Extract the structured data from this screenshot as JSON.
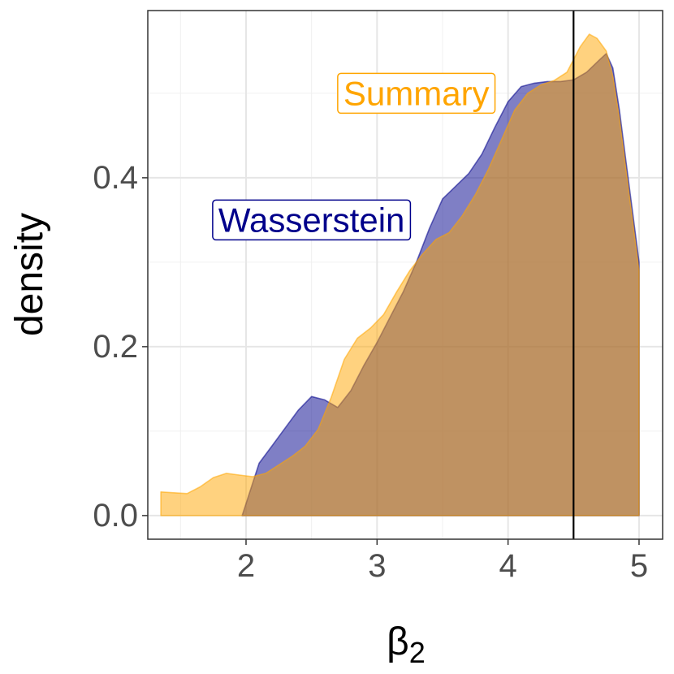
{
  "chart_data": {
    "type": "area",
    "xlabel": "β",
    "xlabel_sub": "2",
    "ylabel": "density",
    "xlim": [
      1.25,
      5.18
    ],
    "ylim": [
      -0.028,
      0.598
    ],
    "x_ticks": [
      2,
      3,
      4,
      5
    ],
    "x_tick_labels": [
      "2",
      "3",
      "4",
      "5"
    ],
    "y_ticks": [
      0.0,
      0.2,
      0.4
    ],
    "y_tick_labels": [
      "0.0",
      "0.2",
      "0.4"
    ],
    "x_minor_gridlines": [
      1.5,
      2.5,
      3.5,
      4.5
    ],
    "y_minor_gridlines": [
      0.1,
      0.3,
      0.5
    ],
    "grid": true,
    "legend": "none",
    "vline": 4.5,
    "series": [
      {
        "name": "Wasserstein",
        "fill": "#00008B",
        "stroke": "#00008B",
        "opacity": 0.5,
        "x": [
          1.97,
          2.1,
          2.2,
          2.3,
          2.4,
          2.5,
          2.6,
          2.7,
          2.8,
          2.9,
          3.0,
          3.1,
          3.2,
          3.3,
          3.4,
          3.5,
          3.6,
          3.7,
          3.8,
          3.9,
          4.0,
          4.1,
          4.2,
          4.3,
          4.4,
          4.5,
          4.6,
          4.7,
          4.75,
          4.8,
          4.85,
          4.9,
          4.95,
          5.0
        ],
        "y": [
          0.0,
          0.062,
          0.083,
          0.104,
          0.125,
          0.141,
          0.137,
          0.128,
          0.148,
          0.178,
          0.205,
          0.235,
          0.265,
          0.3,
          0.34,
          0.375,
          0.39,
          0.405,
          0.428,
          0.46,
          0.49,
          0.508,
          0.512,
          0.514,
          0.514,
          0.516,
          0.525,
          0.54,
          0.547,
          0.53,
          0.48,
          0.42,
          0.36,
          0.3
        ]
      },
      {
        "name": "Summary",
        "fill": "#FFA500",
        "stroke": "#FFA500",
        "opacity": 0.5,
        "x": [
          1.35,
          1.45,
          1.55,
          1.65,
          1.75,
          1.85,
          1.95,
          2.05,
          2.15,
          2.25,
          2.35,
          2.45,
          2.55,
          2.65,
          2.75,
          2.85,
          2.95,
          3.05,
          3.15,
          3.25,
          3.35,
          3.45,
          3.55,
          3.65,
          3.75,
          3.85,
          3.95,
          4.05,
          4.15,
          4.25,
          4.35,
          4.45,
          4.55,
          4.62,
          4.68,
          4.75,
          4.8,
          4.85,
          4.9,
          4.95,
          5.0
        ],
        "y": [
          0.028,
          0.027,
          0.026,
          0.034,
          0.045,
          0.05,
          0.048,
          0.046,
          0.05,
          0.06,
          0.07,
          0.082,
          0.102,
          0.14,
          0.185,
          0.21,
          0.222,
          0.238,
          0.265,
          0.29,
          0.31,
          0.327,
          0.335,
          0.355,
          0.38,
          0.41,
          0.445,
          0.48,
          0.5,
          0.51,
          0.515,
          0.525,
          0.555,
          0.57,
          0.565,
          0.55,
          0.52,
          0.47,
          0.41,
          0.35,
          0.29
        ]
      }
    ],
    "annotations": [
      {
        "text": "Summary",
        "x": 3.3,
        "y": 0.5,
        "color": "#FFA500"
      },
      {
        "text": "Wasserstein",
        "x": 2.5,
        "y": 0.35,
        "color": "#00008B"
      }
    ]
  }
}
